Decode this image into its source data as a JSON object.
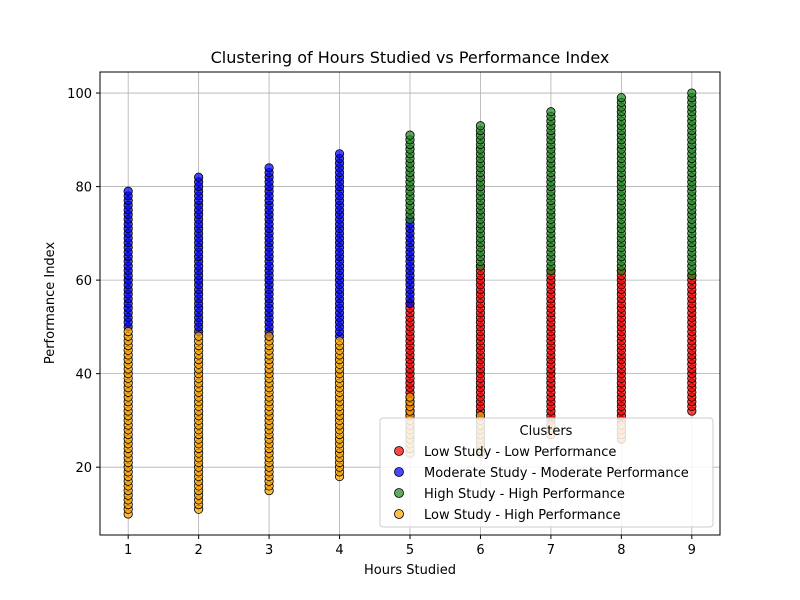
{
  "chart_data": {
    "type": "scatter",
    "title": "Clustering of Hours Studied vs Performance Index",
    "xlabel": "Hours Studied",
    "ylabel": "Performance Index",
    "xlim": [
      0.6,
      9.4
    ],
    "ylim": [
      5.5,
      104.5
    ],
    "xticks": [
      1,
      2,
      3,
      4,
      5,
      6,
      7,
      8,
      9
    ],
    "yticks": [
      20,
      40,
      60,
      80,
      100
    ],
    "grid": true,
    "legend": {
      "title": "Clusters",
      "placement": "bottom-right"
    },
    "series": [
      {
        "name": "Low Study - Low Performance",
        "color": "#ff0000",
        "ranges": [
          {
            "x": 5,
            "ymin": 26,
            "ymax": 55
          },
          {
            "x": 6,
            "ymin": 24,
            "ymax": 63
          },
          {
            "x": 7,
            "ymin": 27,
            "ymax": 62
          },
          {
            "x": 8,
            "ymin": 26,
            "ymax": 62
          },
          {
            "x": 9,
            "ymin": 32,
            "ymax": 61
          }
        ]
      },
      {
        "name": "Moderate Study - Moderate Performance",
        "color": "#0000ff",
        "ranges": [
          {
            "x": 1,
            "ymin": 50,
            "ymax": 79
          },
          {
            "x": 2,
            "ymin": 49,
            "ymax": 82
          },
          {
            "x": 3,
            "ymin": 48,
            "ymax": 84
          },
          {
            "x": 4,
            "ymin": 48,
            "ymax": 87
          },
          {
            "x": 5,
            "ymin": 55,
            "ymax": 73
          }
        ]
      },
      {
        "name": "High Study - High Performance",
        "color": "#228b22",
        "ranges": [
          {
            "x": 5,
            "ymin": 73,
            "ymax": 91
          },
          {
            "x": 6,
            "ymin": 63,
            "ymax": 93
          },
          {
            "x": 7,
            "ymin": 62,
            "ymax": 96
          },
          {
            "x": 8,
            "ymin": 62,
            "ymax": 99
          },
          {
            "x": 9,
            "ymin": 61,
            "ymax": 100
          }
        ]
      },
      {
        "name": "Low Study - High Performance",
        "color": "#ffa500",
        "ranges": [
          {
            "x": 1,
            "ymin": 10,
            "ymax": 49
          },
          {
            "x": 2,
            "ymin": 11,
            "ymax": 48
          },
          {
            "x": 3,
            "ymin": 15,
            "ymax": 48
          },
          {
            "x": 4,
            "ymin": 18,
            "ymax": 47
          },
          {
            "x": 5,
            "ymin": 23,
            "ymax": 35
          },
          {
            "x": 6,
            "ymin": 23,
            "ymax": 31
          },
          {
            "x": 7,
            "ymin": 27,
            "ymax": 29
          },
          {
            "x": 8,
            "ymin": 26,
            "ymax": 29
          }
        ]
      }
    ]
  }
}
